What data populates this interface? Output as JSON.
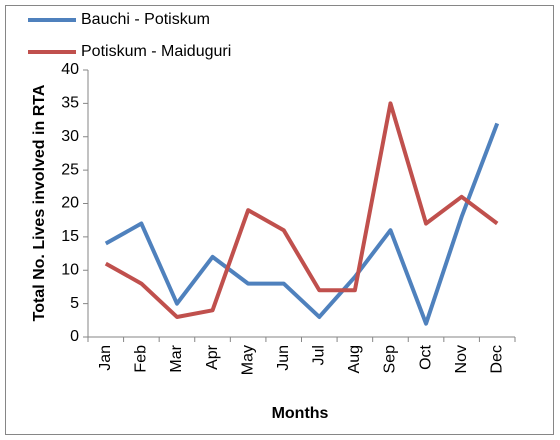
{
  "chart_data": {
    "type": "line",
    "x_label": "Months",
    "y_label": "Total No. Lives involved in RTA",
    "categories": [
      "Jan",
      "Feb",
      "Mar",
      "Apr",
      "May",
      "Jun",
      "Jul",
      "Aug",
      "Sep",
      "Oct",
      "Nov",
      "Dec"
    ],
    "series": [
      {
        "name": "Bauchi - Potiskum",
        "color": "#4f81bd",
        "values": [
          14,
          17,
          5,
          12,
          8,
          8,
          3,
          9,
          16,
          2,
          18,
          32
        ]
      },
      {
        "name": "Potiskum - Maiduguri",
        "color": "#c0504d",
        "values": [
          11,
          8,
          3,
          4,
          19,
          16,
          7,
          7,
          35,
          17,
          21,
          17
        ]
      }
    ],
    "ylim": [
      0,
      40
    ],
    "yticks": [
      0,
      5,
      10,
      15,
      20,
      25,
      30,
      35,
      40
    ],
    "grid": false,
    "legend": "top-left"
  }
}
